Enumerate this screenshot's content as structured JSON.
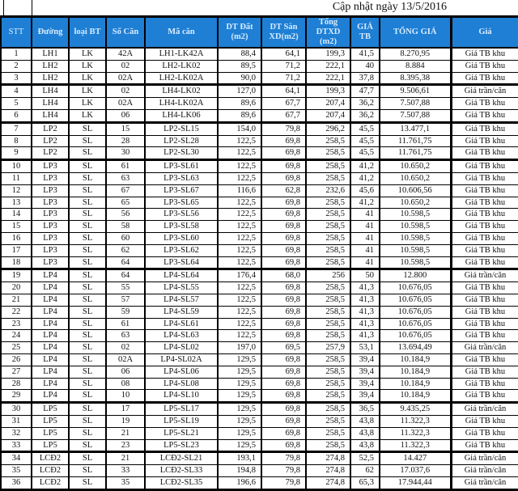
{
  "title": "Cập nhật ngày 13/5/2016",
  "columns": [
    "STT",
    "Đường",
    "loại BT",
    "Số Căn",
    "Mã căn",
    "DT Đất (m2)",
    "DT Sàn XD(m2)",
    "Tổng DTXD (m2)",
    "GIÁ TB",
    "TỔNG GIÁ",
    "Giá"
  ],
  "rows": [
    [
      "1",
      "LH1",
      "LK",
      "42A",
      "LH1-LK42A",
      "88,4",
      "64,1",
      "199,3",
      "41,5",
      "8.270,95",
      "Giá TB khu"
    ],
    [
      "2",
      "LH2",
      "LK",
      "02",
      "LH2-LK02",
      "89,5",
      "71,2",
      "222,1",
      "40",
      "8.884",
      "Giá TB khu"
    ],
    [
      "3",
      "LH2",
      "LK",
      "02A",
      "LH2-LK02A",
      "90,0",
      "71,2",
      "222,1",
      "37,8",
      "8.395,38",
      "Giá TB khu"
    ],
    [
      "4",
      "LH4",
      "LK",
      "02",
      "LH4-LK02",
      "127,0",
      "64,1",
      "199,3",
      "47,7",
      "9.506,61",
      "Giá trần/căn"
    ],
    [
      "5",
      "LH4",
      "LK",
      "02A",
      "LH4-LK02A",
      "89,6",
      "67,7",
      "207,4",
      "36,2",
      "7.507,88",
      "Giá TB khu"
    ],
    [
      "6",
      "LH4",
      "LK",
      "06",
      "LH4-LK06",
      "89,6",
      "67,7",
      "207,4",
      "36,2",
      "7.507,88",
      "Giá TB khu"
    ],
    [
      "7",
      "LP2",
      "SL",
      "15",
      "LP2-SL15",
      "154,0",
      "79,8",
      "296,2",
      "45,5",
      "13.477,1",
      "Giá TB khu"
    ],
    [
      "8",
      "LP2",
      "SL",
      "28",
      "LP2-SL28",
      "122,5",
      "69,8",
      "258,5",
      "45,5",
      "11.761,75",
      "Giá TB khu"
    ],
    [
      "9",
      "LP2",
      "SL",
      "30",
      "LP2-SL30",
      "122,5",
      "69,8",
      "258,5",
      "45,5",
      "11.761,75",
      "Giá TB khu"
    ],
    [
      "10",
      "LP3",
      "SL",
      "61",
      "LP3-SL61",
      "122,5",
      "69,8",
      "258,5",
      "41,2",
      "10.650,2",
      "Giá TB khu"
    ],
    [
      "11",
      "LP3",
      "SL",
      "63",
      "LP3-SL63",
      "122,5",
      "69,8",
      "258,5",
      "41,2",
      "10.650,2",
      "Giá TB khu"
    ],
    [
      "12",
      "LP3",
      "SL",
      "67",
      "LP3-SL67",
      "116,6",
      "62,8",
      "232,6",
      "45,6",
      "10.606,56",
      "Giá TB khu"
    ],
    [
      "13",
      "LP3",
      "SL",
      "65",
      "LP3-SL65",
      "122,5",
      "69,8",
      "258,5",
      "41,2",
      "10.650,2",
      "Giá TB khu"
    ],
    [
      "14",
      "LP3",
      "SL",
      "56",
      "LP3-SL56",
      "122,5",
      "69,8",
      "258,5",
      "41",
      "10.598,5",
      "Giá TB khu"
    ],
    [
      "15",
      "LP3",
      "SL",
      "58",
      "LP3-SL58",
      "122,5",
      "69,8",
      "258,5",
      "41",
      "10.598,5",
      "Giá TB khu"
    ],
    [
      "16",
      "LP3",
      "SL",
      "60",
      "LP3-SL60",
      "122,5",
      "69,8",
      "258,5",
      "41",
      "10.598,5",
      "Giá TB khu"
    ],
    [
      "17",
      "LP3",
      "SL",
      "62",
      "LP3-SL62",
      "122,5",
      "69,8",
      "258,5",
      "41",
      "10.598,5",
      "Giá TB khu"
    ],
    [
      "18",
      "LP3",
      "SL",
      "64",
      "LP3-SL64",
      "122,5",
      "69,8",
      "258,5",
      "41",
      "10.598,5",
      "Giá TB khu"
    ],
    [
      "19",
      "LP4",
      "SL",
      "64",
      "LP4-SL64",
      "176,4",
      "68,0",
      "256",
      "50",
      "12.800",
      "Giá trần/căn"
    ],
    [
      "20",
      "LP4",
      "SL",
      "55",
      "LP4-SL55",
      "122,5",
      "69,8",
      "258,5",
      "41,3",
      "10.676,05",
      "Giá TB khu"
    ],
    [
      "21",
      "LP4",
      "SL",
      "57",
      "LP4-SL57",
      "122,5",
      "69,8",
      "258,5",
      "41,3",
      "10.676,05",
      "Giá TB khu"
    ],
    [
      "22",
      "LP4",
      "SL",
      "59",
      "LP4-SL59",
      "122,5",
      "69,8",
      "258,5",
      "41,3",
      "10.676,05",
      "Giá TB khu"
    ],
    [
      "23",
      "LP4",
      "SL",
      "61",
      "LP4-SL61",
      "122,5",
      "69,8",
      "258,5",
      "41,3",
      "10.676,05",
      "Giá TB khu"
    ],
    [
      "24",
      "LP4",
      "SL",
      "63",
      "LP4-SL63",
      "122,5",
      "69,8",
      "258,5",
      "41,3",
      "10.676,05",
      "Giá TB khu"
    ],
    [
      "25",
      "LP4",
      "SL",
      "02",
      "LP4-SL02",
      "197,0",
      "69,5",
      "257,9",
      "53,1",
      "13.694,49",
      "Giá trần/căn"
    ],
    [
      "26",
      "LP4",
      "SL",
      "02A",
      "LP4-SL02A",
      "129,5",
      "69,8",
      "258,5",
      "39,4",
      "10.184,9",
      "Giá TB khu"
    ],
    [
      "27",
      "LP4",
      "SL",
      "06",
      "LP4-SL06",
      "129,5",
      "69,8",
      "258,5",
      "39,4",
      "10.184,9",
      "Giá TB khu"
    ],
    [
      "28",
      "LP4",
      "SL",
      "08",
      "LP4-SL08",
      "129,5",
      "69,8",
      "258,5",
      "39,4",
      "10.184,9",
      "Giá TB khu"
    ],
    [
      "29",
      "LP4",
      "SL",
      "10",
      "LP4-SL10",
      "129,5",
      "69,8",
      "258,5",
      "39,4",
      "10.184,9",
      "Giá TB khu"
    ],
    [
      "30",
      "LP5",
      "SL",
      "17",
      "LP5-SL17",
      "129,5",
      "69,8",
      "258,5",
      "36,5",
      "9.435,25",
      "Giá trần/căn"
    ],
    [
      "31",
      "LP5",
      "SL",
      "19",
      "LP5-SL19",
      "129,5",
      "69,8",
      "258,5",
      "43,8",
      "11.322,3",
      "Giá TB khu"
    ],
    [
      "32",
      "LP5",
      "SL",
      "21",
      "LP5-SL21",
      "129,5",
      "69,8",
      "258,5",
      "43,8",
      "11.322,3",
      "Giá TB khu"
    ],
    [
      "33",
      "LP5",
      "SL",
      "23",
      "LP5-SL23",
      "129,5",
      "69,8",
      "258,5",
      "43,8",
      "11.322,3",
      "Giá TB khu"
    ],
    [
      "34",
      "LCĐ2",
      "SL",
      "21",
      "LCĐ2-SL21",
      "193,1",
      "79,8",
      "274,8",
      "52,5",
      "14.427",
      "Giá trần/căn"
    ],
    [
      "35",
      "LCĐ2",
      "SL",
      "33",
      "LCĐ2-SL33",
      "194,8",
      "79,8",
      "274,8",
      "62",
      "17.037,6",
      "Giá trần/căn"
    ],
    [
      "36",
      "LCĐ2",
      "SL",
      "35",
      "LCĐ2-SL35",
      "196,6",
      "79,8",
      "274,8",
      "65,3",
      "17.944,44",
      "Giá trần/căn"
    ]
  ],
  "header_color": "#1e7fd4"
}
